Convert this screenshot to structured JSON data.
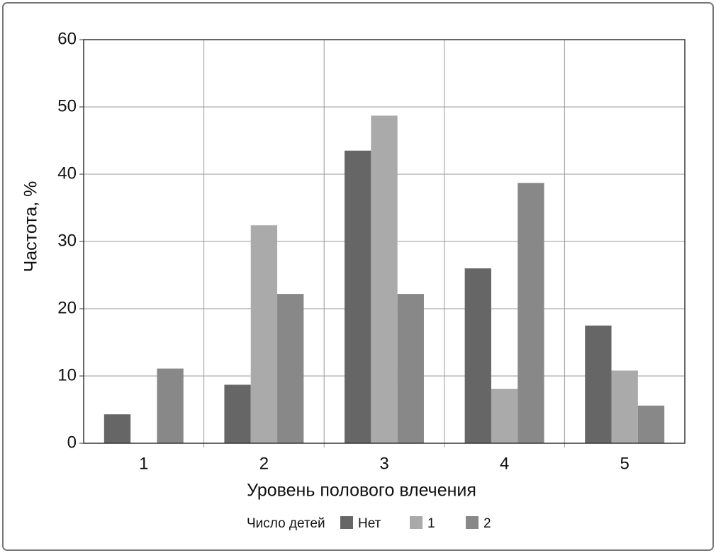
{
  "chart_data": {
    "type": "bar",
    "xlabel": "Уровень полового влечения",
    "ylabel": "Частота, %",
    "legend_title": "Число детей",
    "categories": [
      "1",
      "2",
      "3",
      "4",
      "5"
    ],
    "series": [
      {
        "name": "Нет",
        "color": "#666666",
        "values": [
          4.3,
          8.7,
          43.5,
          26.0,
          17.5
        ]
      },
      {
        "name": "1",
        "color": "#aaaaaa",
        "values": [
          0,
          32.4,
          48.7,
          8.1,
          10.8
        ]
      },
      {
        "name": "2",
        "color": "#888888",
        "values": [
          11.1,
          22.2,
          22.2,
          38.7,
          5.6
        ]
      }
    ],
    "ylim": [
      0,
      60
    ],
    "yticks": [
      0,
      10,
      20,
      30,
      40,
      50,
      60
    ],
    "grid": true,
    "legend": "bottom"
  }
}
